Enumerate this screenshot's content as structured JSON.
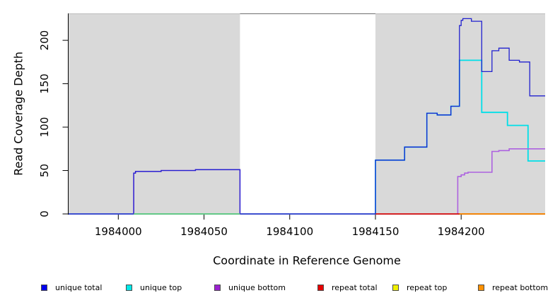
{
  "chart_data": {
    "type": "line",
    "title": "",
    "xlabel": "Coordinate in Reference Genome",
    "ylabel": "Read Coverage Depth",
    "xlim": [
      1983971,
      1984249
    ],
    "ylim": [
      0,
      231
    ],
    "x_ticks": [
      1984000,
      1984050,
      1984100,
      1984150,
      1984200
    ],
    "y_ticks": [
      0,
      50,
      100,
      150,
      200
    ],
    "grid": false,
    "legend_position": "bottom",
    "axis_color": "#000000",
    "background_regions": [
      {
        "name": "repeat-region-left",
        "x0": 1983971,
        "x1": 1984071,
        "fill": "#d9d9d9",
        "top_edge": "#bdbdbd"
      },
      {
        "name": "non-repeat-region",
        "x0": 1984071,
        "x1": 1984150,
        "fill": "#ffffff",
        "top_edge": "#6e6e6e"
      },
      {
        "name": "repeat-region-right",
        "x0": 1984150,
        "x1": 1984249,
        "fill": "#d9d9d9",
        "top_edge": "#bdbdbd"
      }
    ],
    "series": [
      {
        "name": "repeat top",
        "color": "#f0f000",
        "width": 1.4,
        "points": [
          [
            1983971,
            0
          ],
          [
            1984249,
            0
          ]
        ]
      },
      {
        "name": "unique top",
        "color": "#00dfe8",
        "width": 1.8,
        "points": [
          [
            1983971,
            0
          ],
          [
            1984150,
            0
          ],
          [
            1984150,
            62
          ],
          [
            1984167,
            62
          ],
          [
            1984167,
            77
          ],
          [
            1984180,
            77
          ],
          [
            1984180,
            116
          ],
          [
            1984186,
            116
          ],
          [
            1984186,
            114
          ],
          [
            1984194,
            114
          ],
          [
            1984194,
            124
          ],
          [
            1984199,
            124
          ],
          [
            1984199,
            177
          ],
          [
            1984212,
            177
          ],
          [
            1984212,
            117
          ],
          [
            1984227,
            117
          ],
          [
            1984227,
            102
          ],
          [
            1984239,
            102
          ],
          [
            1984239,
            61
          ],
          [
            1984249,
            61
          ]
        ]
      },
      {
        "name": "unique bottom",
        "color": "#ad62e0",
        "width": 1.6,
        "points": [
          [
            1983971,
            0
          ],
          [
            1984009,
            0
          ],
          [
            1984009,
            47
          ],
          [
            1984010,
            47
          ],
          [
            1984010,
            49
          ],
          [
            1984025,
            49
          ],
          [
            1984025,
            50
          ],
          [
            1984045,
            50
          ],
          [
            1984045,
            51
          ],
          [
            1984071,
            51
          ],
          [
            1984071,
            0
          ],
          [
            1984198,
            0
          ],
          [
            1984198,
            43
          ],
          [
            1984200,
            43
          ],
          [
            1984200,
            45
          ],
          [
            1984202,
            45
          ],
          [
            1984202,
            47
          ],
          [
            1984204,
            47
          ],
          [
            1984204,
            48
          ],
          [
            1984218,
            48
          ],
          [
            1984218,
            72
          ],
          [
            1984222,
            72
          ],
          [
            1984222,
            73
          ],
          [
            1984228,
            73
          ],
          [
            1984228,
            75
          ],
          [
            1984249,
            75
          ]
        ]
      },
      {
        "name": "repeat total",
        "color": "#e00000",
        "width": 1.4,
        "points": [
          [
            1984150,
            0
          ],
          [
            1984249,
            0
          ]
        ]
      },
      {
        "name": "repeat bottom",
        "color": "#ff9100",
        "width": 1.6,
        "points": [
          [
            1984199,
            0
          ],
          [
            1984249,
            0
          ]
        ]
      },
      {
        "name": "unique total",
        "color": "#2121cf",
        "width": 1.3,
        "points": [
          [
            1983971,
            0
          ],
          [
            1984009,
            0
          ],
          [
            1984009,
            47
          ],
          [
            1984010,
            47
          ],
          [
            1984010,
            49
          ],
          [
            1984025,
            49
          ],
          [
            1984025,
            50
          ],
          [
            1984045,
            50
          ],
          [
            1984045,
            51
          ],
          [
            1984071,
            51
          ],
          [
            1984071,
            0
          ],
          [
            1984150,
            0
          ],
          [
            1984150,
            62
          ],
          [
            1984167,
            62
          ],
          [
            1984167,
            77
          ],
          [
            1984180,
            77
          ],
          [
            1984180,
            116
          ],
          [
            1984186,
            116
          ],
          [
            1984186,
            114
          ],
          [
            1984194,
            114
          ],
          [
            1984194,
            124
          ],
          [
            1984199,
            124
          ],
          [
            1984199,
            217
          ],
          [
            1984200,
            217
          ],
          [
            1984200,
            223
          ],
          [
            1984201,
            223
          ],
          [
            1984201,
            225
          ],
          [
            1984206,
            225
          ],
          [
            1984206,
            222
          ],
          [
            1984212,
            222
          ],
          [
            1984212,
            164
          ],
          [
            1984218,
            164
          ],
          [
            1984218,
            188
          ],
          [
            1984222,
            188
          ],
          [
            1984222,
            191
          ],
          [
            1984228,
            191
          ],
          [
            1984228,
            177
          ],
          [
            1984234,
            177
          ],
          [
            1984234,
            175
          ],
          [
            1984240,
            175
          ],
          [
            1984240,
            136
          ],
          [
            1984249,
            136
          ]
        ]
      }
    ],
    "baseline_overlaps": [
      {
        "x0": 1984009,
        "x1": 1984071,
        "y": 0,
        "color": "#74c474",
        "note": "unique top over repeat top at zero renders green"
      }
    ],
    "legend": [
      {
        "label": "unique total",
        "color": "#0000ee"
      },
      {
        "label": "unique top",
        "color": "#00e8e8"
      },
      {
        "label": "unique bottom",
        "color": "#9b21d0"
      },
      {
        "label": "repeat total",
        "color": "#e60000"
      },
      {
        "label": "repeat top",
        "color": "#f0f000"
      },
      {
        "label": "repeat bottom",
        "color": "#ff9100"
      }
    ]
  }
}
